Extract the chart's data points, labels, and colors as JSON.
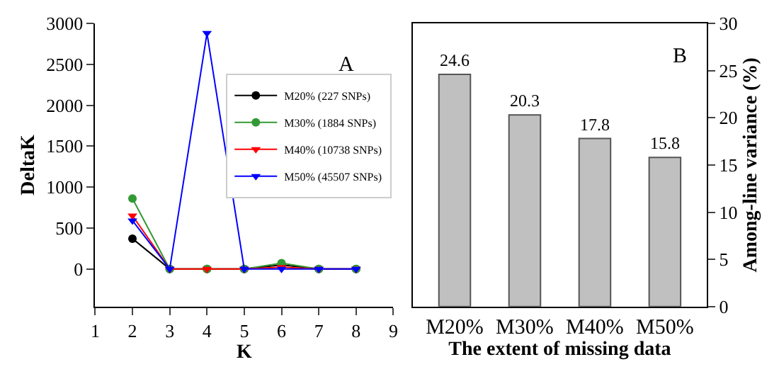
{
  "chart_data": [
    {
      "type": "line",
      "xlabel": "K",
      "ylabel": "DeltaK",
      "x": [
        2,
        3,
        4,
        5,
        6,
        7,
        8
      ],
      "xlim": [
        1,
        9
      ],
      "xticks": [
        1,
        2,
        3,
        4,
        5,
        6,
        7,
        8,
        9
      ],
      "ylim": [
        -460,
        3000
      ],
      "yticks": [
        0,
        500,
        1000,
        1500,
        2000,
        2500,
        3000
      ],
      "legend": "top right",
      "annotations": [
        "A"
      ],
      "series": [
        {
          "name": "M20% (227 SNPs)",
          "color": "#000000",
          "marker": "circle",
          "values": [
            370,
            0,
            0,
            0,
            50,
            0,
            0
          ]
        },
        {
          "name": "M30% (1884 SNPs)",
          "color": "#339933",
          "marker": "circle",
          "values": [
            860,
            0,
            0,
            0,
            70,
            0,
            0
          ]
        },
        {
          "name": "M40% (10738 SNPs)",
          "color": "#ff0000",
          "marker": "triangle",
          "values": [
            650,
            0,
            0,
            0,
            20,
            0,
            0
          ]
        },
        {
          "name": "M50% (45507 SNPs)",
          "color": "#0000ff",
          "marker": "triangle",
          "values": [
            590,
            0,
            2880,
            0,
            0,
            0,
            0
          ]
        }
      ]
    },
    {
      "type": "bar",
      "xlabel": "The extent of missing data",
      "ylabel": "Among-line variance (%)",
      "categories": [
        "M20%",
        "M30%",
        "M40%",
        "M50%"
      ],
      "ylim": [
        0,
        30
      ],
      "yticks": [
        0,
        5,
        10,
        15,
        20,
        25,
        30
      ],
      "data_labels": true,
      "annotations": [
        "B"
      ],
      "series": [
        {
          "color": "#c0c0c0",
          "values": [
            24.6,
            20.3,
            17.8,
            15.8
          ]
        }
      ]
    }
  ]
}
